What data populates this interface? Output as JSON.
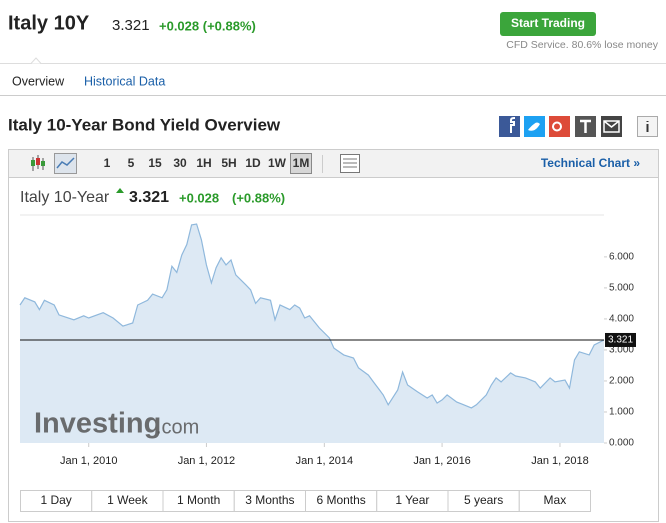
{
  "header": {
    "title": "Italy 10Y",
    "price": "3.321",
    "change": "+0.028 (+0.88%)",
    "button": "Start Trading",
    "note": "CFD Service. 80.6% lose money"
  },
  "tabs": [
    "Overview",
    "Historical Data"
  ],
  "section_title": "Italy 10-Year Bond Yield Overview",
  "toolbar": {
    "intervals": [
      "1",
      "5",
      "15",
      "30",
      "1H",
      "5H",
      "1D",
      "1W",
      "1M"
    ],
    "technical_link": "Technical Chart »"
  },
  "chart_header": {
    "name": "Italy 10-Year",
    "price": "3.321",
    "change": "+0.028",
    "change_pct": "(+0.88%)"
  },
  "watermark": {
    "brand": "Investing",
    "suffix": ".com"
  },
  "chart_data": {
    "type": "area",
    "color": "#8fb8dc",
    "fill": "#dde9f4",
    "x": [
      "2008-11-01",
      "2008-12-01",
      "2009-02-01",
      "2009-03-01",
      "2009-04-01",
      "2009-06-01",
      "2009-07-01",
      "2009-10-01",
      "2009-12-01",
      "2010-01-01",
      "2010-04-01",
      "2010-06-01",
      "2010-08-01",
      "2010-10-01",
      "2010-11-01",
      "2011-01-01",
      "2011-02-01",
      "2011-04-01",
      "2011-05-01",
      "2011-06-01",
      "2011-07-01",
      "2011-08-01",
      "2011-09-01",
      "2011-10-01",
      "2011-11-01",
      "2011-12-01",
      "2012-01-01",
      "2012-02-01",
      "2012-03-01",
      "2012-04-01",
      "2012-05-01",
      "2012-06-01",
      "2012-07-01",
      "2012-09-01",
      "2012-10-01",
      "2012-11-01",
      "2012-12-01",
      "2013-02-01",
      "2013-03-01",
      "2013-04-01",
      "2013-06-01",
      "2013-07-01",
      "2013-08-01",
      "2013-09-01",
      "2013-10-01",
      "2013-12-01",
      "2014-02-01",
      "2014-03-01",
      "2014-05-01",
      "2014-07-01",
      "2014-08-01",
      "2014-10-01",
      "2014-11-01",
      "2015-01-01",
      "2015-02-01",
      "2015-04-01",
      "2015-05-01",
      "2015-06-01",
      "2015-08-01",
      "2015-10-01",
      "2015-11-01",
      "2015-12-01",
      "2016-01-01",
      "2016-02-01",
      "2016-04-01",
      "2016-05-01",
      "2016-07-01",
      "2016-08-01",
      "2016-10-01",
      "2016-11-01",
      "2016-12-01",
      "2017-01-01",
      "2017-03-01",
      "2017-04-01",
      "2017-06-01",
      "2017-08-01",
      "2017-09-01",
      "2017-11-01",
      "2017-12-01",
      "2018-02-01",
      "2018-03-01",
      "2018-04-01",
      "2018-05-01",
      "2018-07-01",
      "2018-08-01",
      "2018-10-01"
    ],
    "values": [
      4.45,
      4.68,
      4.55,
      4.3,
      4.6,
      4.45,
      4.13,
      3.97,
      4.1,
      4.03,
      4.2,
      4.03,
      3.77,
      3.87,
      4.45,
      4.6,
      4.8,
      4.68,
      4.94,
      5.7,
      5.5,
      6.06,
      6.4,
      7.03,
      7.06,
      6.55,
      5.74,
      5.16,
      5.65,
      5.97,
      5.74,
      5.9,
      5.42,
      5.1,
      4.94,
      4.5,
      4.68,
      4.6,
      3.97,
      4.45,
      4.3,
      4.45,
      4.35,
      4.03,
      4.1,
      3.71,
      3.39,
      3.06,
      2.84,
      2.74,
      2.42,
      2.19,
      1.97,
      1.55,
      1.23,
      1.71,
      2.29,
      1.87,
      1.65,
      1.45,
      1.55,
      1.29,
      1.39,
      1.55,
      1.32,
      1.26,
      1.13,
      1.23,
      1.55,
      1.87,
      2.1,
      1.97,
      2.26,
      2.16,
      2.1,
      1.97,
      1.77,
      2.1,
      1.97,
      2.03,
      1.77,
      2.68,
      2.94,
      2.84,
      3.16,
      3.321
    ],
    "xlim": [
      "2008-11-01",
      "2018-10-01"
    ],
    "xticks": [
      {
        "value": "2010-01-01",
        "label": "Jan 1, 2010"
      },
      {
        "value": "2012-01-01",
        "label": "Jan 1, 2012"
      },
      {
        "value": "2014-01-01",
        "label": "Jan 1, 2014"
      },
      {
        "value": "2016-01-01",
        "label": "Jan 1, 2016"
      },
      {
        "value": "2018-01-01",
        "label": "Jan 1, 2018"
      }
    ],
    "ylim": [
      0,
      7.35
    ],
    "yticks": [
      {
        "value": 0,
        "label": "0.000"
      },
      {
        "value": 1,
        "label": "1.000"
      },
      {
        "value": 2,
        "label": "2.000"
      },
      {
        "value": 3,
        "label": "3.000"
      },
      {
        "value": 4,
        "label": "4.000"
      },
      {
        "value": 5,
        "label": "5.000"
      },
      {
        "value": 6,
        "label": "6.000"
      }
    ],
    "price_line": 3.321
  },
  "ranges": [
    "1 Day",
    "1 Week",
    "1 Month",
    "3 Months",
    "6 Months",
    "1 Year",
    "5 years",
    "Max"
  ]
}
